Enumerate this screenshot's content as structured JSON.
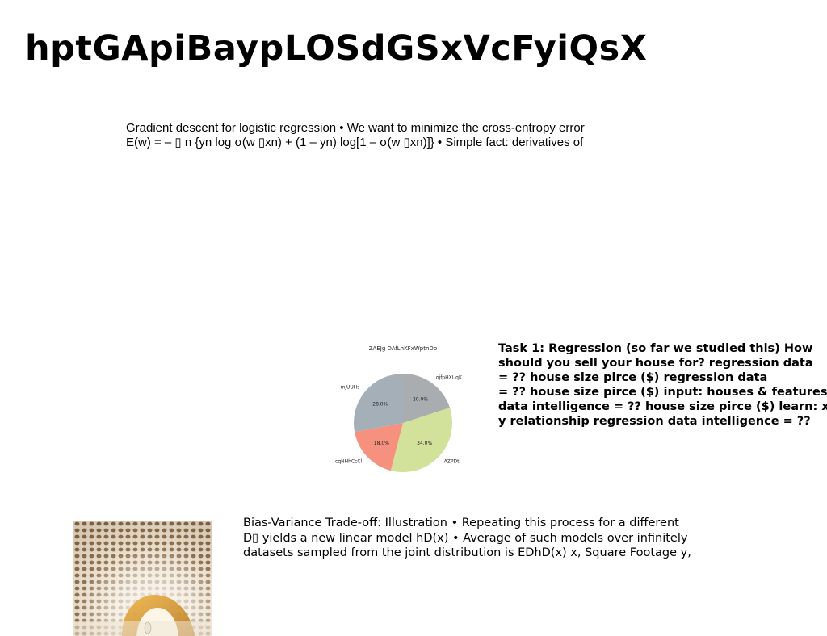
{
  "slide": {
    "title": "hptGApiBaypLOSdGSxVcFyiQsX"
  },
  "text_block_1": {
    "lines": [
      "Gradient descent for logistic regression • We want to minimize the cross-entropy error",
      "E(w) = – ▯ n {yn log σ(w ▯xn) + (1 – yn) log[1 – σ(w ▯xn)]} • Simple fact: derivatives of"
    ]
  },
  "text_block_2": {
    "lines": [
      "Task 1: Regression (so far we studied this) How",
      "should you sell your house for? regression data",
      "= ?? house size pirce ($) regression data",
      "= ?? house size pirce ($) input: houses & features",
      "data intelligence = ?? house size pirce ($) learn: x",
      "y relationship regression data intelligence = ??"
    ]
  },
  "text_block_3": {
    "lines": [
      "Bias-Variance Trade-off: Illustration • Repeating this process for a different",
      "D▯ yields a new linear model hD(x) • Average of such models over infinitely",
      "datasets sampled from the joint distribution is EDhD(x) x, Square Footage y,"
    ]
  },
  "chart_data": {
    "type": "pie",
    "title": "ZAEJg DAfLhKFxWptnDp",
    "categories": [
      "ojfpHXUqK",
      "AZPDt",
      "cqNHhCcCl",
      "mjUUHs"
    ],
    "values": [
      20.0,
      34.0,
      18.0,
      28.0
    ],
    "value_labels": [
      "20.0%",
      "34.0%",
      "18.0%",
      "28.0%"
    ],
    "colors": [
      "#a9adb0",
      "#d3e29a",
      "#f6917f",
      "#a5afb8"
    ],
    "start_angle_deg": 90,
    "direction": "clockwise",
    "legend": "none"
  },
  "image": {
    "icon": "ornate-lattice-tunnel-photo"
  }
}
